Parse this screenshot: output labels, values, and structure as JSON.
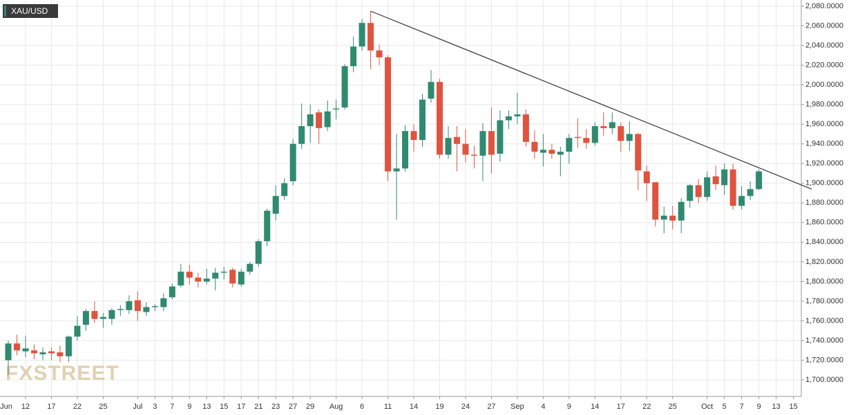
{
  "chart_data": {
    "type": "candlestick",
    "title": "XAU/USD",
    "watermark": "FXSTREET",
    "up_color": "#2f8a70",
    "down_color": "#e0533f",
    "categories": [
      "Jun",
      null,
      null,
      "12",
      null,
      null,
      "17",
      null,
      null,
      "22",
      null,
      null,
      "25",
      null,
      null,
      null,
      "Jul",
      null,
      "3",
      null,
      "7",
      null,
      "9",
      null,
      "13",
      null,
      "15",
      null,
      "17",
      null,
      "21",
      null,
      "23",
      null,
      "27",
      null,
      "29",
      null,
      null,
      "Aug",
      null,
      null,
      "6",
      null,
      null,
      "11",
      null,
      null,
      "14",
      null,
      null,
      "19",
      null,
      null,
      "24",
      null,
      null,
      "27",
      null,
      null,
      "Sep",
      null,
      null,
      "4",
      null,
      null,
      "9",
      null,
      null,
      "14",
      null,
      null,
      "17",
      null,
      null,
      "22",
      null,
      null,
      "25",
      null,
      null,
      null,
      "Oct",
      null,
      "5",
      null,
      "7",
      null,
      "9",
      null,
      "13",
      null,
      "15"
    ],
    "open": [
      null,
      1720,
      1737,
      1729,
      1730,
      1726,
      1729,
      1728,
      1724,
      1744,
      1756,
      1770,
      1762,
      1762,
      1771,
      1771,
      1781,
      1769,
      1774,
      1774,
      1784,
      1796,
      1810,
      1804,
      1800,
      1803,
      1809,
      1812,
      1797,
      1810,
      1818,
      1841,
      1869,
      1887,
      1902,
      1940,
      1958,
      1972,
      1957,
      1975,
      1977,
      2019,
      2039,
      2063,
      2035,
      2028,
      1912,
      1915,
      1953,
      1944,
      1986,
      2003,
      1929,
      1947,
      1940,
      1929,
      1928,
      1953,
      1930,
      1964,
      1968,
      1970,
      1942,
      1931,
      1934,
      1929,
      1932,
      1947,
      1946,
      1941,
      1958,
      1956,
      1958,
      1943,
      1950,
      1912,
      1901,
      1863,
      1867,
      1862,
      1882,
      1898,
      1886,
      1907,
      1898,
      1914,
      1877,
      1887,
      1894,
      null,
      null,
      null,
      null
    ],
    "high": [
      null,
      1740,
      1746,
      1745,
      1736,
      1733,
      1733,
      1735,
      1745,
      1765,
      1772,
      1780,
      1768,
      1773,
      1776,
      1786,
      1790,
      1779,
      1777,
      1788,
      1798,
      1818,
      1817,
      1809,
      1813,
      1814,
      1815,
      1814,
      1813,
      1820,
      1843,
      1874,
      1898,
      1905,
      1945,
      1981,
      1980,
      1975,
      1984,
      1985,
      2021,
      2049,
      2067,
      2075,
      2041,
      2030,
      1950,
      1959,
      1960,
      1991,
      2015,
      2006,
      1958,
      1958,
      1955,
      1938,
      1961,
      1977,
      1974,
      1974,
      1992,
      1975,
      1954,
      1950,
      1940,
      1937,
      1950,
      1966,
      1955,
      1962,
      1972,
      1972,
      1962,
      1963,
      1951,
      1918,
      1901,
      1876,
      1877,
      1885,
      1899,
      1904,
      1912,
      1918,
      1920,
      1920,
      1897,
      1902,
      1914,
      null,
      null,
      null,
      null
    ],
    "low": [
      null,
      1705,
      1725,
      1723,
      1721,
      1720,
      1720,
      1718,
      1718,
      1740,
      1750,
      1758,
      1753,
      1756,
      1765,
      1767,
      1760,
      1765,
      1770,
      1770,
      1782,
      1794,
      1797,
      1794,
      1797,
      1791,
      1802,
      1794,
      1795,
      1807,
      1815,
      1836,
      1862,
      1883,
      1898,
      1935,
      1941,
      1940,
      1953,
      1965,
      1975,
      2013,
      2035,
      2016,
      2020,
      1902,
      1863,
      1912,
      1932,
      1937,
      1982,
      1925,
      1925,
      1912,
      1921,
      1915,
      1902,
      1910,
      1922,
      1955,
      1960,
      1937,
      1925,
      1917,
      1925,
      1907,
      1920,
      1936,
      1935,
      1938,
      1948,
      1950,
      1932,
      1933,
      1893,
      1882,
      1856,
      1849,
      1853,
      1849,
      1875,
      1880,
      1882,
      1893,
      1888,
      1873,
      1873,
      1883,
      1893,
      null,
      null,
      null,
      null
    ],
    "close": [
      null,
      1737,
      1730,
      1732,
      1727,
      1728,
      1727,
      1724,
      1744,
      1755,
      1770,
      1762,
      1764,
      1771,
      1772,
      1780,
      1770,
      1774,
      1775,
      1783,
      1795,
      1810,
      1804,
      1800,
      1803,
      1809,
      1810,
      1798,
      1810,
      1818,
      1841,
      1872,
      1887,
      1900,
      1940,
      1958,
      1970,
      1956,
      1973,
      1976,
      2019,
      2039,
      2063,
      2035,
      2028,
      1912,
      1915,
      1953,
      1944,
      1985,
      2003,
      1929,
      1946,
      1940,
      1929,
      1928,
      1953,
      1929,
      1964,
      1968,
      1970,
      1942,
      1932,
      1934,
      1930,
      1932,
      1946,
      1946,
      1941,
      1958,
      1956,
      1962,
      1943,
      1950,
      1913,
      1900,
      1863,
      1867,
      1862,
      1881,
      1898,
      1886,
      1906,
      1899,
      1914,
      1877,
      1887,
      1894,
      1912,
      null,
      null,
      null,
      null
    ],
    "trendline": [
      2075,
      1894
    ],
    "ylim": [
      1683.2,
      2086.3
    ],
    "yticks": [
      {
        "value": 1700,
        "label": "1,700.0000"
      },
      {
        "value": 1720,
        "label": "1,720.0000"
      },
      {
        "value": 1740,
        "label": "1,740.0000"
      },
      {
        "value": 1760,
        "label": "1,760.0000"
      },
      {
        "value": 1780,
        "label": "1,780.0000"
      },
      {
        "value": 1800,
        "label": "1,800.0000"
      },
      {
        "value": 1820,
        "label": "1,820.0000"
      },
      {
        "value": 1840,
        "label": "1,840.0000"
      },
      {
        "value": 1860,
        "label": "1,860.0000"
      },
      {
        "value": 1880,
        "label": "1,880.0000"
      },
      {
        "value": 1900,
        "label": "1,900.0000"
      },
      {
        "value": 1920,
        "label": "1,920.0000"
      },
      {
        "value": 1940,
        "label": "1,940.0000"
      },
      {
        "value": 1960,
        "label": "1,960.0000"
      },
      {
        "value": 1980,
        "label": "1,980.0000"
      },
      {
        "value": 2000,
        "label": "2,000.0000"
      },
      {
        "value": 2020,
        "label": "2,020.0000"
      },
      {
        "value": 2040,
        "label": "2,040.0000"
      },
      {
        "value": 2060,
        "label": "2,060.0000"
      },
      {
        "value": 2080,
        "label": "2,080.0000"
      }
    ],
    "grid": true
  }
}
